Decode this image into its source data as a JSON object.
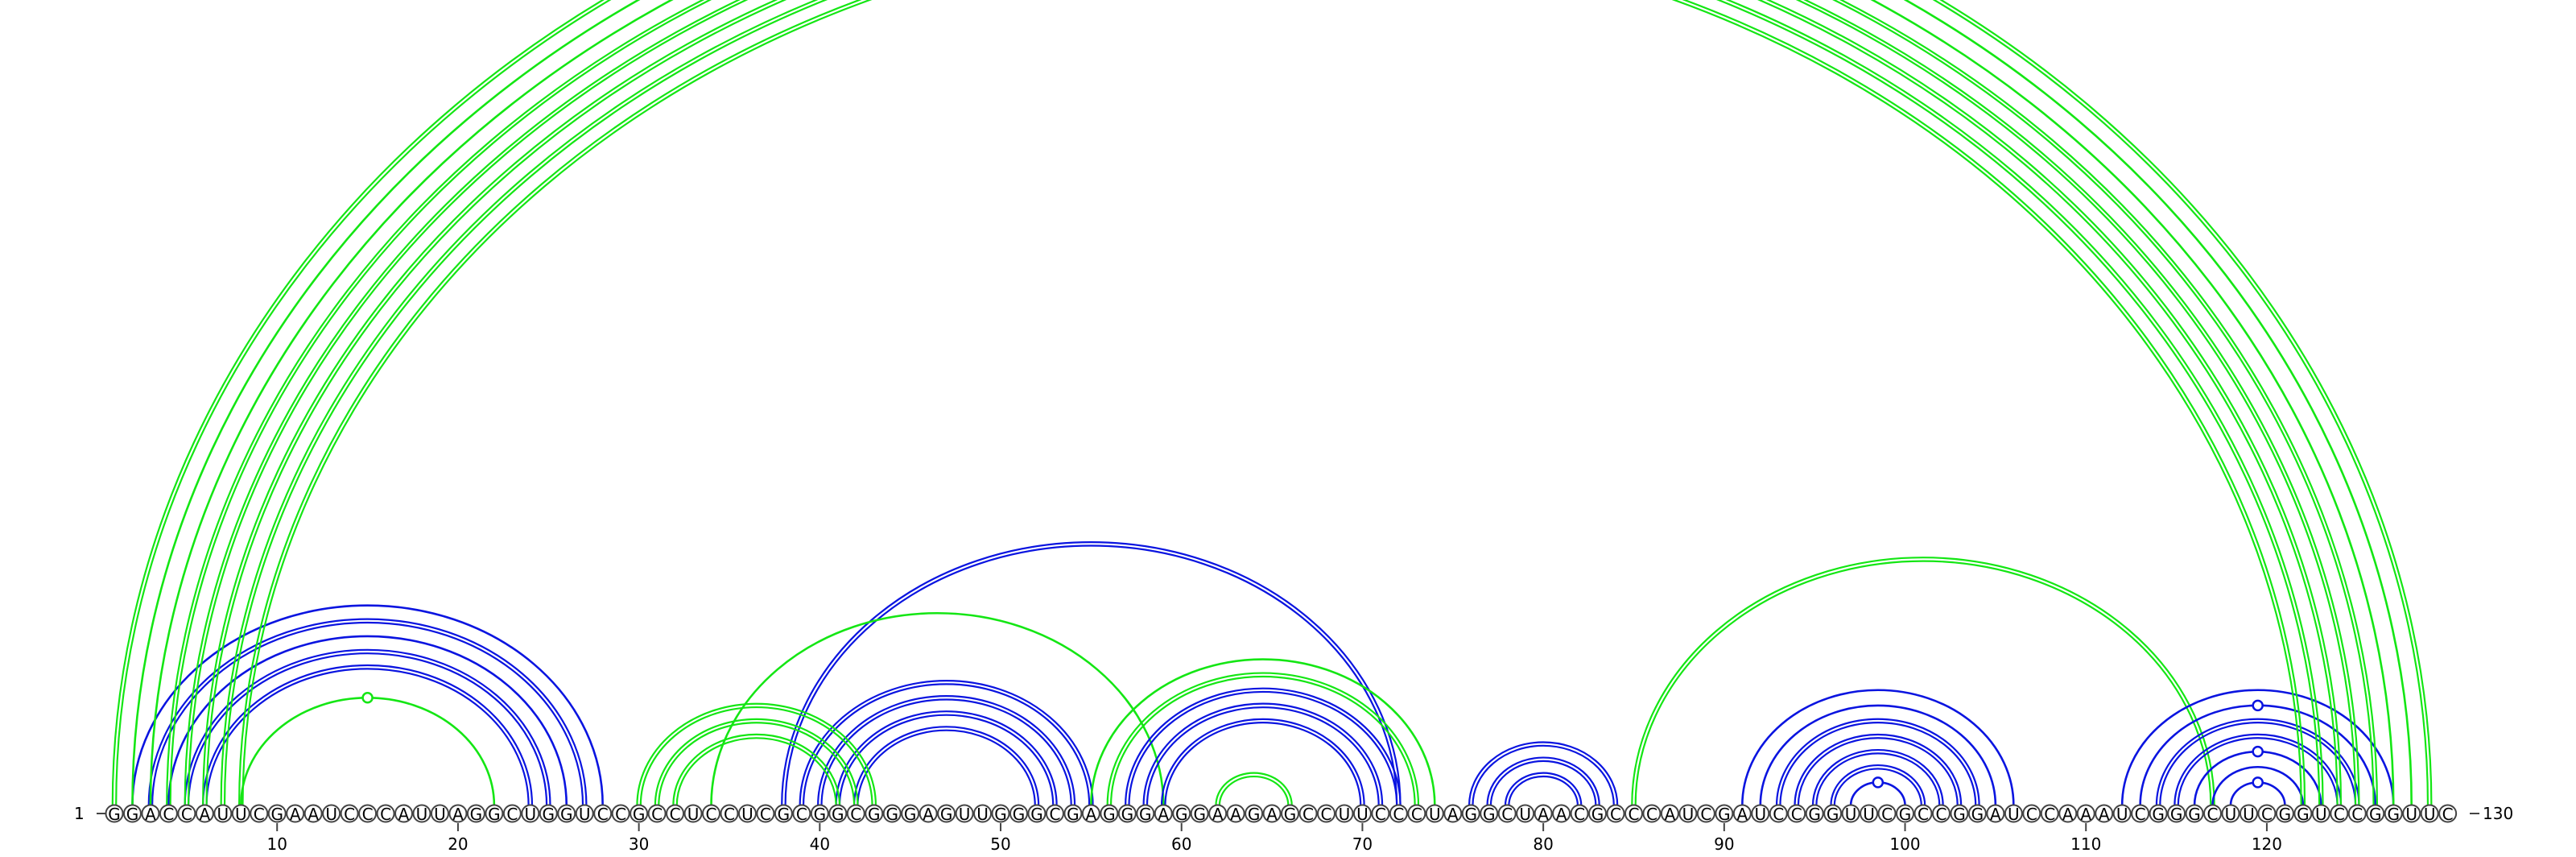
{
  "sequence": "GGACCAUUCGAAUCCCAUUAGGCUGGUCCGCCUCCUCGCGGCGGGAGUUGGGCGAGGGAGGAAGAGCCUUCCCUAGGCUAACGCCCAUCGAUCCGGUUCGCCGGAUCCAAAUCGGGCUUCGGUCCGGUUC",
  "start_label": "1",
  "end_label": "130",
  "tick_labels": [
    "10",
    "20",
    "30",
    "40",
    "50",
    "60",
    "70",
    "80",
    "90",
    "100",
    "110",
    "120"
  ],
  "colors": {
    "structure_a": "#0a14e0",
    "structure_b": "#14e614"
  },
  "arcs": [
    {
      "i": 2,
      "j": 28,
      "color": "structure_a",
      "lines": 1
    },
    {
      "i": 3,
      "j": 27,
      "color": "structure_a",
      "lines": 2
    },
    {
      "i": 4,
      "j": 26,
      "color": "structure_a",
      "lines": 1
    },
    {
      "i": 5,
      "j": 25,
      "color": "structure_a",
      "lines": 2
    },
    {
      "i": 6,
      "j": 24,
      "color": "structure_a",
      "lines": 2
    },
    {
      "i": 8,
      "j": 22,
      "color": "structure_b",
      "lines": 1,
      "marker": true
    },
    {
      "i": 38,
      "j": 72,
      "color": "structure_a",
      "lines": 2
    },
    {
      "i": 34,
      "j": 59,
      "color": "structure_b",
      "lines": 1
    },
    {
      "i": 39,
      "j": 55,
      "color": "structure_a",
      "lines": 2
    },
    {
      "i": 40,
      "j": 54,
      "color": "structure_a",
      "lines": 2
    },
    {
      "i": 41,
      "j": 53,
      "color": "structure_a",
      "lines": 2
    },
    {
      "i": 42,
      "j": 52,
      "color": "structure_a",
      "lines": 2
    },
    {
      "i": 30,
      "j": 43,
      "color": "structure_b",
      "lines": 2
    },
    {
      "i": 31,
      "j": 42,
      "color": "structure_b",
      "lines": 2
    },
    {
      "i": 32,
      "j": 41,
      "color": "structure_b",
      "lines": 2
    },
    {
      "i": 55,
      "j": 74,
      "color": "structure_b",
      "lines": 1
    },
    {
      "i": 56,
      "j": 73,
      "color": "structure_b",
      "lines": 2
    },
    {
      "i": 57,
      "j": 72,
      "color": "structure_a",
      "lines": 2
    },
    {
      "i": 58,
      "j": 71,
      "color": "structure_a",
      "lines": 2
    },
    {
      "i": 59,
      "j": 70,
      "color": "structure_a",
      "lines": 2
    },
    {
      "i": 62,
      "j": 66,
      "color": "structure_b",
      "lines": 2
    },
    {
      "i": 76,
      "j": 84,
      "color": "structure_a",
      "lines": 2
    },
    {
      "i": 77,
      "j": 83,
      "color": "structure_a",
      "lines": 2
    },
    {
      "i": 78,
      "j": 82,
      "color": "structure_a",
      "lines": 2
    },
    {
      "i": 85,
      "j": 117,
      "color": "structure_b",
      "lines": 2
    },
    {
      "i": 91,
      "j": 106,
      "color": "structure_a",
      "lines": 1
    },
    {
      "i": 92,
      "j": 105,
      "color": "structure_a",
      "lines": 1
    },
    {
      "i": 93,
      "j": 104,
      "color": "structure_a",
      "lines": 2
    },
    {
      "i": 94,
      "j": 103,
      "color": "structure_a",
      "lines": 2
    },
    {
      "i": 95,
      "j": 102,
      "color": "structure_a",
      "lines": 2
    },
    {
      "i": 96,
      "j": 101,
      "color": "structure_a",
      "lines": 2
    },
    {
      "i": 97,
      "j": 100,
      "color": "structure_a",
      "lines": 1,
      "marker": true
    },
    {
      "i": 112,
      "j": 127,
      "color": "structure_a",
      "lines": 1
    },
    {
      "i": 113,
      "j": 126,
      "color": "structure_a",
      "lines": 1,
      "marker": true
    },
    {
      "i": 114,
      "j": 125,
      "color": "structure_a",
      "lines": 2
    },
    {
      "i": 115,
      "j": 124,
      "color": "structure_a",
      "lines": 2
    },
    {
      "i": 116,
      "j": 123,
      "color": "structure_a",
      "lines": 1,
      "marker": true
    },
    {
      "i": 117,
      "j": 122,
      "color": "structure_a",
      "lines": 1
    },
    {
      "i": 118,
      "j": 121,
      "color": "structure_a",
      "lines": 1,
      "marker": true
    },
    {
      "i": 1,
      "j": 129,
      "color": "structure_b",
      "lines": 2
    },
    {
      "i": 2,
      "j": 128,
      "color": "structure_b",
      "lines": 1,
      "marker": true
    },
    {
      "i": 3,
      "j": 127,
      "color": "structure_b",
      "lines": 1
    },
    {
      "i": 4,
      "j": 126,
      "color": "structure_b",
      "lines": 2
    },
    {
      "i": 5,
      "j": 125,
      "color": "structure_b",
      "lines": 2
    },
    {
      "i": 6,
      "j": 124,
      "color": "structure_b",
      "lines": 2
    },
    {
      "i": 7,
      "j": 123,
      "color": "structure_b",
      "lines": 2
    },
    {
      "i": 8,
      "j": 122,
      "color": "structure_b",
      "lines": 2
    }
  ]
}
